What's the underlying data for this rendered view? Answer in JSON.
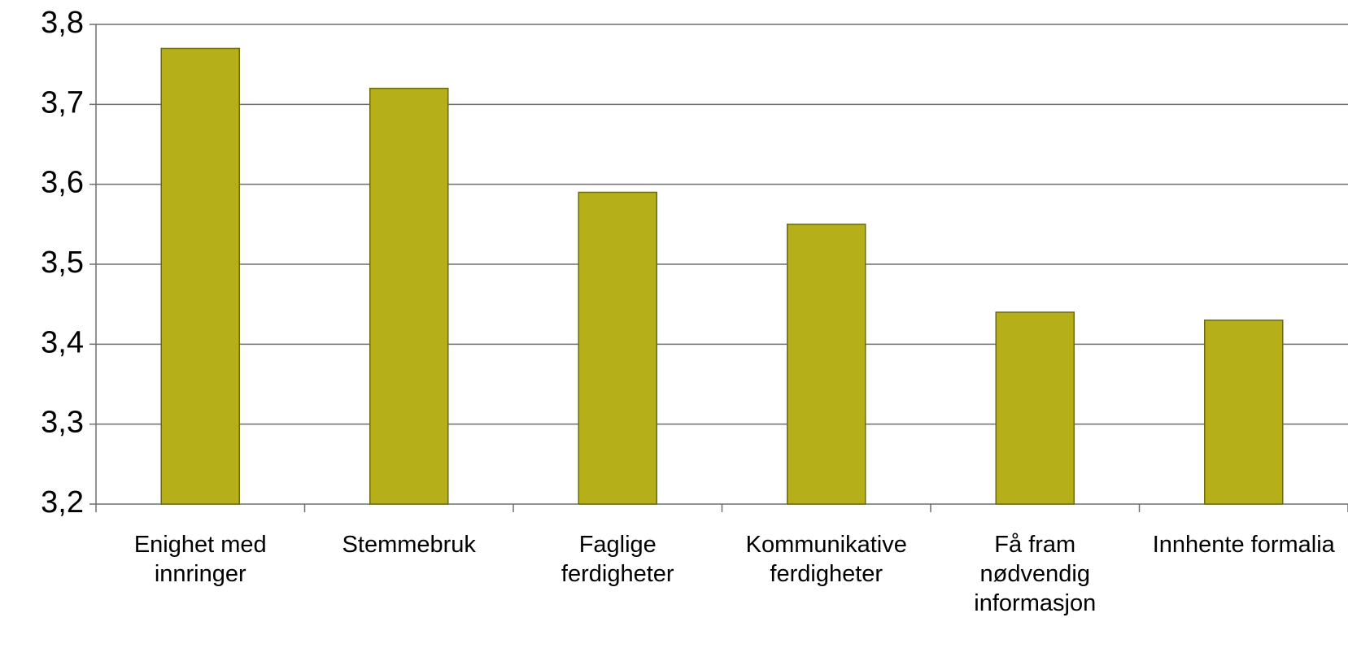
{
  "chart_data": {
    "type": "bar",
    "categories": [
      "Enighet med innringer",
      "Stemmebruk",
      "Faglige ferdigheter",
      "Kommunikative ferdigheter",
      "Få fram nødvendig informasjon",
      "Innhente formalia"
    ],
    "values": [
      3.77,
      3.72,
      3.59,
      3.55,
      3.44,
      3.43
    ],
    "color": "#b5b01a",
    "ylim": [
      3.2,
      3.8
    ],
    "yticks": [
      {
        "value": 3.2,
        "label": "3,2"
      },
      {
        "value": 3.3,
        "label": "3,3"
      },
      {
        "value": 3.4,
        "label": "3,4"
      },
      {
        "value": 3.5,
        "label": "3,5"
      },
      {
        "value": 3.6,
        "label": "3,6"
      },
      {
        "value": 3.7,
        "label": "3,7"
      },
      {
        "value": 3.8,
        "label": "3,8"
      }
    ],
    "grid": true
  }
}
